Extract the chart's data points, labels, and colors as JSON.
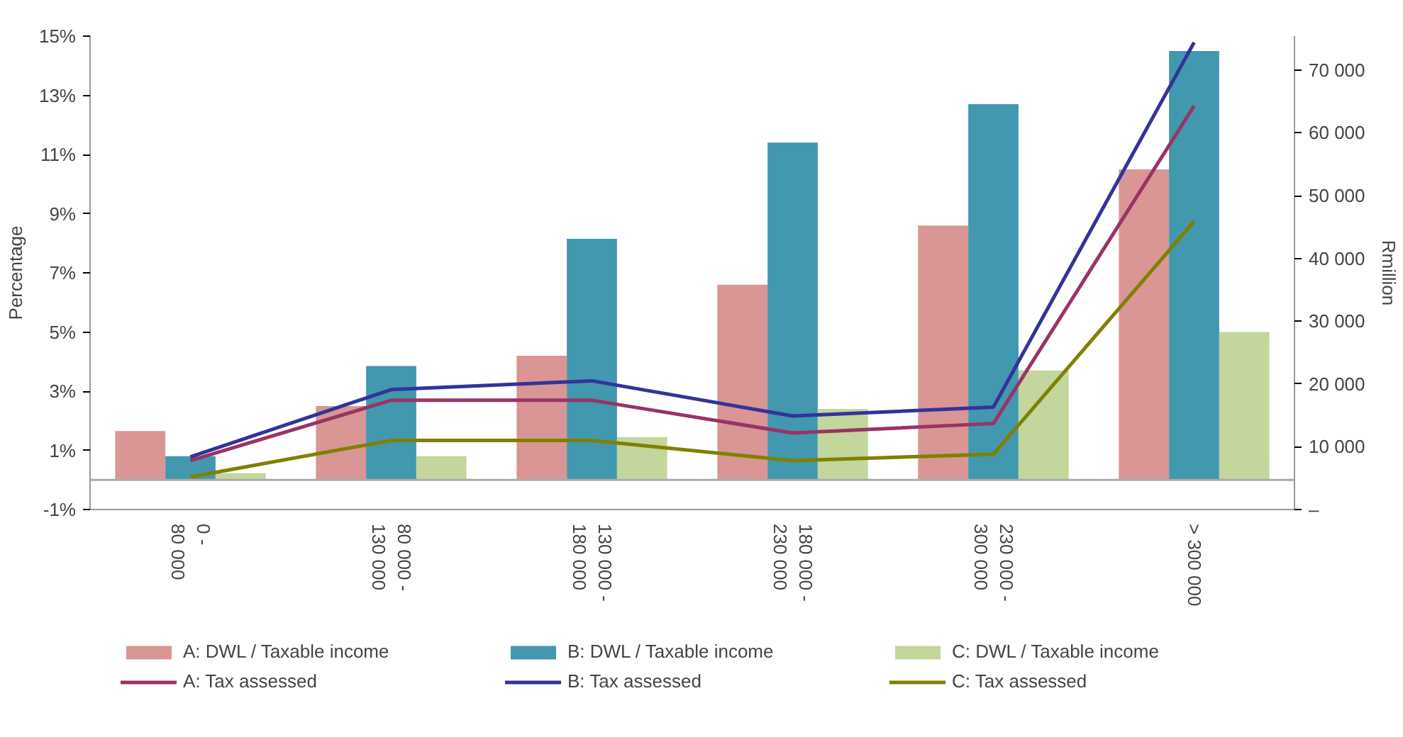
{
  "chart_data": {
    "type": "bar",
    "ylabel": "Percentage",
    "y2label": "Rmillion",
    "categories": [
      "0 - 80 000",
      "80 000 - 130 000",
      "130 000 - 180 000",
      "180 000 - 230 000",
      "230 000 - 300 000",
      "> 300 000"
    ],
    "series": [
      {
        "name": "A: DWL / Taxable income",
        "color": "#d99694",
        "values": [
          1.65,
          2.5,
          4.2,
          6.6,
          8.6,
          10.5
        ]
      },
      {
        "name": "B: DWL / Taxable income",
        "color": "#4198af",
        "values": [
          0.8,
          3.85,
          8.15,
          11.4,
          12.7,
          14.5
        ]
      },
      {
        "name": "C: DWL / Taxable income",
        "color": "#c3d69b",
        "values": [
          0.23,
          0.8,
          1.45,
          2.4,
          3.7,
          5.0
        ]
      },
      {
        "name": "A: Tax assessed",
        "type": "line",
        "axis": "y2",
        "color": "#993366",
        "values": [
          7800,
          17400,
          17400,
          12200,
          13700,
          64300
        ]
      },
      {
        "name": "B: Tax assessed",
        "type": "line",
        "axis": "y2",
        "color": "#333399",
        "values": [
          8400,
          19100,
          20500,
          14900,
          16300,
          74400
        ]
      },
      {
        "name": "C: Tax assessed",
        "type": "line",
        "axis": "y2",
        "color": "#808000",
        "values": [
          5200,
          11000,
          11000,
          7800,
          8800,
          45900
        ]
      }
    ],
    "ylim": [
      -1,
      15
    ],
    "yticks": [
      {
        "value": -1,
        "label": "-1%"
      },
      {
        "value": 1,
        "label": "1%"
      },
      {
        "value": 3,
        "label": "3%"
      },
      {
        "value": 5,
        "label": "5%"
      },
      {
        "value": 7,
        "label": "7%"
      },
      {
        "value": 9,
        "label": "9%"
      },
      {
        "value": 11,
        "label": "11%"
      },
      {
        "value": 13,
        "label": "13%"
      },
      {
        "value": 15,
        "label": "15%"
      }
    ],
    "y2lim": [
      0,
      75400
    ],
    "y2ticks": [
      {
        "value": 0,
        "label": "–"
      },
      {
        "value": 10000,
        "label": "10 000"
      },
      {
        "value": 20000,
        "label": "20 000"
      },
      {
        "value": 30000,
        "label": "30 000"
      },
      {
        "value": 40000,
        "label": "40 000"
      },
      {
        "value": 50000,
        "label": "50 000"
      },
      {
        "value": 60000,
        "label": "60 000"
      },
      {
        "value": 70000,
        "label": "70 000"
      }
    ],
    "grid": false,
    "legend": "bottom"
  }
}
